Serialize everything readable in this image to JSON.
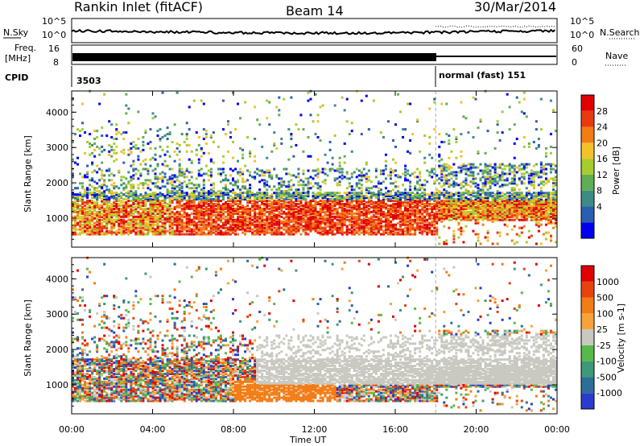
{
  "header": {
    "title": "Rankin Inlet (fitACF)",
    "beam": "Beam 14",
    "date": "30/Mar/2014"
  },
  "strips": {
    "nsky_label": "N.Sky",
    "nsearch_label": "N.Search",
    "noise_ticks_left": [
      "10^5",
      "10^0"
    ],
    "noise_ticks_right": [
      "10^5",
      "10^0"
    ],
    "freq_label": "Freq.",
    "freq_unit": "[MHz]",
    "freq_ticks": [
      "16",
      "8"
    ],
    "nave_label": "Nave",
    "nave_ticks": [
      "60",
      "0"
    ],
    "cpid_label": "CPID",
    "cpid_1": "3503",
    "cpid_2": "normal (fast) 151"
  },
  "chart_data": [
    {
      "type": "heatmap",
      "panel": "power",
      "ylabel": "Slant Range [km]",
      "xlabel": "Time UT",
      "x_tick_labels": [
        "00:00",
        "04:00",
        "08:00",
        "12:00",
        "16:00",
        "20:00",
        "00:00"
      ],
      "y_tick_labels": [
        "1000",
        "2000",
        "3000",
        "4000"
      ],
      "x_range_hours": [
        0,
        24
      ],
      "ylim": [
        180,
        4600
      ],
      "mode_change_hour": 18.0,
      "colorbar": {
        "label": "Power [dB]",
        "tick_labels": [
          "28",
          "24",
          "20",
          "16",
          "12",
          "8",
          "4"
        ],
        "range": [
          0,
          32
        ],
        "colors": [
          "#0000ee",
          "#2a5fb0",
          "#3e8a86",
          "#60ad54",
          "#a6cc30",
          "#f3c12a",
          "#f27c15",
          "#e83a10",
          "#e00000"
        ]
      }
    },
    {
      "type": "heatmap",
      "panel": "velocity",
      "ylabel": "Slant Range [km]",
      "xlabel": "Time UT",
      "x_tick_labels": [
        "00:00",
        "04:00",
        "08:00",
        "12:00",
        "16:00",
        "20:00",
        "00:00"
      ],
      "y_tick_labels": [
        "1000",
        "2000",
        "3000",
        "4000"
      ],
      "x_range_hours": [
        0,
        24
      ],
      "ylim": [
        180,
        4600
      ],
      "mode_change_hour": 18.0,
      "colorbar": {
        "label": "Velocity [m s-1]",
        "tick_labels": [
          "1000",
          "500",
          "100",
          "25",
          "-25",
          "-100",
          "-500",
          "-1000"
        ],
        "colors": [
          "#2a3ccf",
          "#2f6d99",
          "#3a9a7a",
          "#58b84a",
          "#c8c8c0",
          "#f7a23a",
          "#f27c15",
          "#e8430f",
          "#e00000"
        ]
      }
    }
  ]
}
